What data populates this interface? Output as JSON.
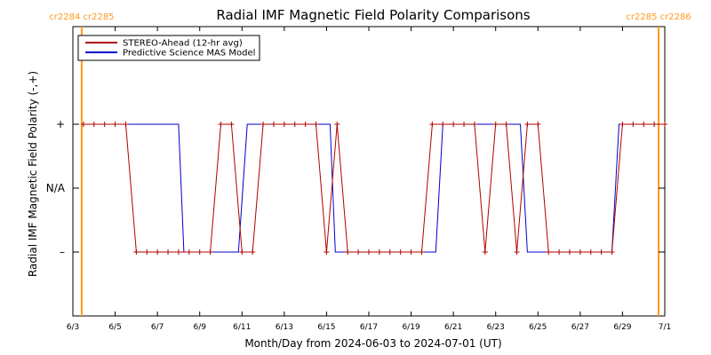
{
  "chart_data": {
    "type": "line",
    "title": "Radial IMF Magnetic Field Polarity Comparisons",
    "xlabel": "Month/Day from 2024-06-03 to 2024-07-01 (UT)",
    "ylabel": "Radial IMF Magnetic Field Polarity (-,+)",
    "xlim": [
      "2024-06-03",
      "2024-07-01"
    ],
    "ylim": [
      -2,
      2
    ],
    "x_ticks": [
      {
        "date": "2024-06-03",
        "label": "6/3"
      },
      {
        "date": "2024-06-05",
        "label": "6/5"
      },
      {
        "date": "2024-06-07",
        "label": "6/7"
      },
      {
        "date": "2024-06-09",
        "label": "6/9"
      },
      {
        "date": "2024-06-11",
        "label": "6/11"
      },
      {
        "date": "2024-06-13",
        "label": "6/13"
      },
      {
        "date": "2024-06-15",
        "label": "6/15"
      },
      {
        "date": "2024-06-17",
        "label": "6/17"
      },
      {
        "date": "2024-06-19",
        "label": "6/19"
      },
      {
        "date": "2024-06-21",
        "label": "6/21"
      },
      {
        "date": "2024-06-23",
        "label": "6/23"
      },
      {
        "date": "2024-06-25",
        "label": "6/25"
      },
      {
        "date": "2024-06-27",
        "label": "6/27"
      },
      {
        "date": "2024-06-29",
        "label": "6/29"
      },
      {
        "date": "2024-07-01",
        "label": "7/1"
      }
    ],
    "y_ticks": [
      {
        "value": 1,
        "label": "+"
      },
      {
        "value": 0,
        "label": "N/A"
      },
      {
        "value": -1,
        "label": "–"
      }
    ],
    "carrington_markers": [
      {
        "date": "2024-06-03 10:00",
        "label": "cr2284 cr2285"
      },
      {
        "date": "2024-06-30 17:00",
        "label": "cr2285 cr2286"
      }
    ],
    "legend_position": "top-left",
    "series": [
      {
        "name": "STEREO-Ahead (12-hr avg)",
        "color": "#b00000",
        "markers": true,
        "points": [
          [
            "2024-06-03 12:00",
            1
          ],
          [
            "2024-06-04 00:00",
            1
          ],
          [
            "2024-06-04 12:00",
            1
          ],
          [
            "2024-06-05 00:00",
            1
          ],
          [
            "2024-06-05 12:00",
            1
          ],
          [
            "2024-06-06 00:00",
            -1
          ],
          [
            "2024-06-06 12:00",
            -1
          ],
          [
            "2024-06-07 00:00",
            -1
          ],
          [
            "2024-06-07 12:00",
            -1
          ],
          [
            "2024-06-08 00:00",
            -1
          ],
          [
            "2024-06-08 12:00",
            -1
          ],
          [
            "2024-06-09 00:00",
            -1
          ],
          [
            "2024-06-09 12:00",
            -1
          ],
          [
            "2024-06-10 00:00",
            1
          ],
          [
            "2024-06-10 12:00",
            1
          ],
          [
            "2024-06-11 00:00",
            -1
          ],
          [
            "2024-06-11 12:00",
            -1
          ],
          [
            "2024-06-12 00:00",
            1
          ],
          [
            "2024-06-12 12:00",
            1
          ],
          [
            "2024-06-13 00:00",
            1
          ],
          [
            "2024-06-13 12:00",
            1
          ],
          [
            "2024-06-14 00:00",
            1
          ],
          [
            "2024-06-14 12:00",
            1
          ],
          [
            "2024-06-15 00:00",
            -1
          ],
          [
            "2024-06-15 12:00",
            1
          ],
          [
            "2024-06-16 00:00",
            -1
          ],
          [
            "2024-06-16 12:00",
            -1
          ],
          [
            "2024-06-17 00:00",
            -1
          ],
          [
            "2024-06-17 12:00",
            -1
          ],
          [
            "2024-06-18 00:00",
            -1
          ],
          [
            "2024-06-18 12:00",
            -1
          ],
          [
            "2024-06-19 00:00",
            -1
          ],
          [
            "2024-06-19 12:00",
            -1
          ],
          [
            "2024-06-20 00:00",
            1
          ],
          [
            "2024-06-20 12:00",
            1
          ],
          [
            "2024-06-21 00:00",
            1
          ],
          [
            "2024-06-21 12:00",
            1
          ],
          [
            "2024-06-22 00:00",
            1
          ],
          [
            "2024-06-22 12:00",
            -1
          ],
          [
            "2024-06-23 00:00",
            1
          ],
          [
            "2024-06-23 12:00",
            1
          ],
          [
            "2024-06-24 00:00",
            -1
          ],
          [
            "2024-06-24 12:00",
            1
          ],
          [
            "2024-06-25 00:00",
            1
          ],
          [
            "2024-06-25 12:00",
            -1
          ],
          [
            "2024-06-26 00:00",
            -1
          ],
          [
            "2024-06-26 12:00",
            -1
          ],
          [
            "2024-06-27 00:00",
            -1
          ],
          [
            "2024-06-27 12:00",
            -1
          ],
          [
            "2024-06-28 00:00",
            -1
          ],
          [
            "2024-06-28 12:00",
            -1
          ],
          [
            "2024-06-29 00:00",
            1
          ],
          [
            "2024-06-29 12:00",
            1
          ],
          [
            "2024-06-30 00:00",
            1
          ],
          [
            "2024-06-30 12:00",
            1
          ],
          [
            "2024-07-01 00:00",
            1
          ]
        ]
      },
      {
        "name": "Predictive Science MAS Model",
        "color": "#0000cc",
        "markers": false,
        "points": [
          [
            "2024-06-03 12:00",
            1
          ],
          [
            "2024-06-08 00:00",
            1
          ],
          [
            "2024-06-08 06:00",
            -1
          ],
          [
            "2024-06-10 20:00",
            -1
          ],
          [
            "2024-06-11 06:00",
            1
          ],
          [
            "2024-06-15 04:00",
            1
          ],
          [
            "2024-06-15 10:00",
            -1
          ],
          [
            "2024-06-20 04:00",
            -1
          ],
          [
            "2024-06-20 12:00",
            1
          ],
          [
            "2024-06-24 04:00",
            1
          ],
          [
            "2024-06-24 12:00",
            -1
          ],
          [
            "2024-06-28 12:00",
            -1
          ],
          [
            "2024-06-28 20:00",
            1
          ],
          [
            "2024-07-01 00:00",
            1
          ]
        ]
      }
    ]
  }
}
